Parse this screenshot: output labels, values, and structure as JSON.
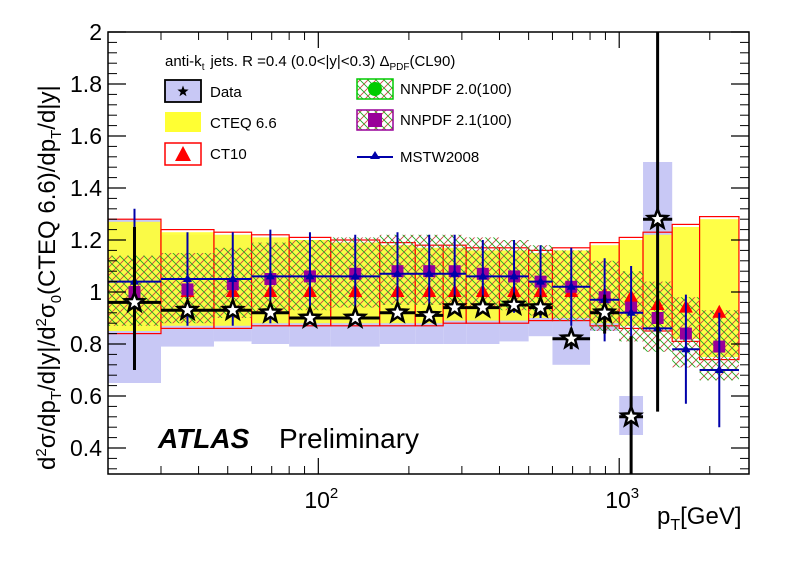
{
  "chart_data": {
    "type": "ratio-plot",
    "xlabel": "p_T[GeV]",
    "ylabel": "d²σ/dp_T/d|y|/d²σ₀(CTEQ 6.6)/dp_T/d|y|",
    "x_scale": "log",
    "xlim": [
      20,
      2700
    ],
    "ylim": [
      0.3,
      2.0
    ],
    "x_tick_labels": [
      "10^2",
      "10^3"
    ],
    "y_tick_labels": [
      "0.4",
      "0.6",
      "0.8",
      "1",
      "1.2",
      "1.4",
      "1.6",
      "1.8",
      "2"
    ],
    "header_parts": {
      "algo": "anti-k",
      "algo_sub": "t",
      "rest": "jets. R =0.4 (0.0<|y|<0.3)",
      "delta": "Δ",
      "delta_sub": "PDF",
      "cl": "(CL90)"
    },
    "atlas_label": "ATLAS",
    "preliminary_label": "Preliminary",
    "legend": [
      {
        "key": "data",
        "label": "Data"
      },
      {
        "key": "cteq",
        "label": "CTEQ 6.6"
      },
      {
        "key": "ct10",
        "label": "CT10"
      },
      {
        "key": "nnpdf20",
        "label": "NNPDF 2.0(100)"
      },
      {
        "key": "nnpdf21",
        "label": "NNPDF 2.1(100)"
      },
      {
        "key": "mstw",
        "label": "MSTW2008"
      }
    ],
    "colors": {
      "data": "#000000",
      "syst_band": "#c8c8f5",
      "cteq": "#ffff33",
      "ct10": "#ff0000",
      "nnpdf20": "#00cc00",
      "nnpdf21": "#990099",
      "mstw": "#0000aa",
      "nnpdf_hatch": "#cc4444"
    },
    "bins": [
      {
        "lo": 20,
        "hi": 30,
        "data": 0.96,
        "stat_lo": 0.7,
        "stat_hi": 1.25,
        "sys_lo": 0.65,
        "sys_hi": 1.28,
        "cteq_lo": 0.85,
        "cteq_hi": 1.27,
        "ct10": 0.99,
        "nnpdf21": 1.0,
        "mstw": 1.04,
        "mstw_err": 0.28
      },
      {
        "lo": 30,
        "hi": 45,
        "data": 0.93,
        "stat_lo": 0.91,
        "stat_hi": 0.95,
        "sys_lo": 0.79,
        "sys_hi": 1.22,
        "cteq_lo": 0.87,
        "cteq_hi": 1.23,
        "ct10": 1.0,
        "nnpdf21": 1.01,
        "mstw": 1.05,
        "mstw_err": 0.18
      },
      {
        "lo": 45,
        "hi": 60,
        "data": 0.93,
        "stat_lo": 0.91,
        "stat_hi": 0.95,
        "sys_lo": 0.81,
        "sys_hi": 1.22,
        "cteq_lo": 0.87,
        "cteq_hi": 1.22,
        "ct10": 1.0,
        "nnpdf21": 1.03,
        "mstw": 1.05,
        "mstw_err": 0.18
      },
      {
        "lo": 60,
        "hi": 80,
        "data": 0.92,
        "stat_lo": 0.9,
        "stat_hi": 0.94,
        "sys_lo": 0.8,
        "sys_hi": 1.21,
        "cteq_lo": 0.88,
        "cteq_hi": 1.21,
        "ct10": 1.0,
        "nnpdf21": 1.05,
        "mstw": 1.06,
        "mstw_err": 0.18
      },
      {
        "lo": 80,
        "hi": 110,
        "data": 0.9,
        "stat_lo": 0.88,
        "stat_hi": 0.92,
        "sys_lo": 0.79,
        "sys_hi": 1.2,
        "cteq_lo": 0.88,
        "cteq_hi": 1.2,
        "ct10": 1.0,
        "nnpdf21": 1.06,
        "mstw": 1.06,
        "mstw_err": 0.17
      },
      {
        "lo": 110,
        "hi": 160,
        "data": 0.9,
        "stat_lo": 0.88,
        "stat_hi": 0.92,
        "sys_lo": 0.79,
        "sys_hi": 1.19,
        "cteq_lo": 0.88,
        "cteq_hi": 1.19,
        "ct10": 1.0,
        "nnpdf21": 1.07,
        "mstw": 1.06,
        "mstw_err": 0.16
      },
      {
        "lo": 160,
        "hi": 210,
        "data": 0.92,
        "stat_lo": 0.9,
        "stat_hi": 0.94,
        "sys_lo": 0.8,
        "sys_hi": 1.18,
        "cteq_lo": 0.88,
        "cteq_hi": 1.18,
        "ct10": 1.0,
        "nnpdf21": 1.08,
        "mstw": 1.07,
        "mstw_err": 0.16
      },
      {
        "lo": 210,
        "hi": 260,
        "data": 0.91,
        "stat_lo": 0.89,
        "stat_hi": 0.93,
        "sys_lo": 0.8,
        "sys_hi": 1.17,
        "cteq_lo": 0.88,
        "cteq_hi": 1.17,
        "ct10": 1.0,
        "nnpdf21": 1.08,
        "mstw": 1.07,
        "mstw_err": 0.15
      },
      {
        "lo": 260,
        "hi": 310,
        "data": 0.94,
        "stat_lo": 0.92,
        "stat_hi": 0.96,
        "sys_lo": 0.8,
        "sys_hi": 1.17,
        "cteq_lo": 0.89,
        "cteq_hi": 1.17,
        "ct10": 1.0,
        "nnpdf21": 1.08,
        "mstw": 1.07,
        "mstw_err": 0.15
      },
      {
        "lo": 310,
        "hi": 400,
        "data": 0.94,
        "stat_lo": 0.92,
        "stat_hi": 0.96,
        "sys_lo": 0.8,
        "sys_hi": 1.16,
        "cteq_lo": 0.89,
        "cteq_hi": 1.16,
        "ct10": 1.0,
        "nnpdf21": 1.07,
        "mstw": 1.06,
        "mstw_err": 0.14
      },
      {
        "lo": 400,
        "hi": 500,
        "data": 0.95,
        "stat_lo": 0.93,
        "stat_hi": 0.97,
        "sys_lo": 0.81,
        "sys_hi": 1.16,
        "cteq_lo": 0.89,
        "cteq_hi": 1.16,
        "ct10": 1.0,
        "nnpdf21": 1.06,
        "mstw": 1.06,
        "mstw_err": 0.14
      },
      {
        "lo": 500,
        "hi": 600,
        "data": 0.94,
        "stat_lo": 0.91,
        "stat_hi": 0.97,
        "sys_lo": 0.83,
        "sys_hi": 1.15,
        "cteq_lo": 0.9,
        "cteq_hi": 1.15,
        "ct10": 1.0,
        "nnpdf21": 1.04,
        "mstw": 1.04,
        "mstw_err": 0.14
      },
      {
        "lo": 600,
        "hi": 800,
        "data": 0.82,
        "stat_lo": 0.78,
        "stat_hi": 0.86,
        "sys_lo": 0.72,
        "sys_hi": 0.92,
        "cteq_lo": 0.9,
        "cteq_hi": 1.16,
        "ct10": 1.0,
        "nnpdf21": 1.02,
        "mstw": 1.02,
        "mstw_err": 0.15
      },
      {
        "lo": 800,
        "hi": 1000,
        "data": 0.92,
        "stat_lo": 0.84,
        "stat_hi": 0.99,
        "sys_lo": 0.85,
        "sys_hi": 0.99,
        "cteq_lo": 0.88,
        "cteq_hi": 1.18,
        "ct10": 0.99,
        "nnpdf21": 0.98,
        "mstw": 0.97,
        "mstw_err": 0.16
      },
      {
        "lo": 1000,
        "hi": 1200,
        "data": 0.52,
        "stat_lo": 0.2,
        "stat_hi": 0.83,
        "sys_lo": 0.45,
        "sys_hi": 0.6,
        "cteq_lo": 0.87,
        "cteq_hi": 1.2,
        "ct10": 0.98,
        "nnpdf21": 0.94,
        "mstw": 0.92,
        "mstw_err": 0.18
      },
      {
        "lo": 1200,
        "hi": 1500,
        "data": 1.28,
        "stat_lo": 0.54,
        "stat_hi": 2.0,
        "sys_lo": 0.95,
        "sys_hi": 1.5,
        "cteq_lo": 0.86,
        "cteq_hi": 1.22,
        "ct10": 0.95,
        "nnpdf21": 0.9,
        "mstw": 0.86,
        "mstw_err": 0.2
      },
      {
        "lo": 1500,
        "hi": 1850,
        "cteq_lo": 0.82,
        "cteq_hi": 1.25,
        "ct10": 0.94,
        "nnpdf21": 0.84,
        "mstw": 0.78,
        "mstw_err": 0.21
      },
      {
        "lo": 1850,
        "hi": 2500,
        "cteq_lo": 0.75,
        "cteq_hi": 1.28,
        "ct10": 0.92,
        "nnpdf21": 0.79,
        "mstw": 0.7,
        "mstw_err": 0.22
      }
    ]
  }
}
